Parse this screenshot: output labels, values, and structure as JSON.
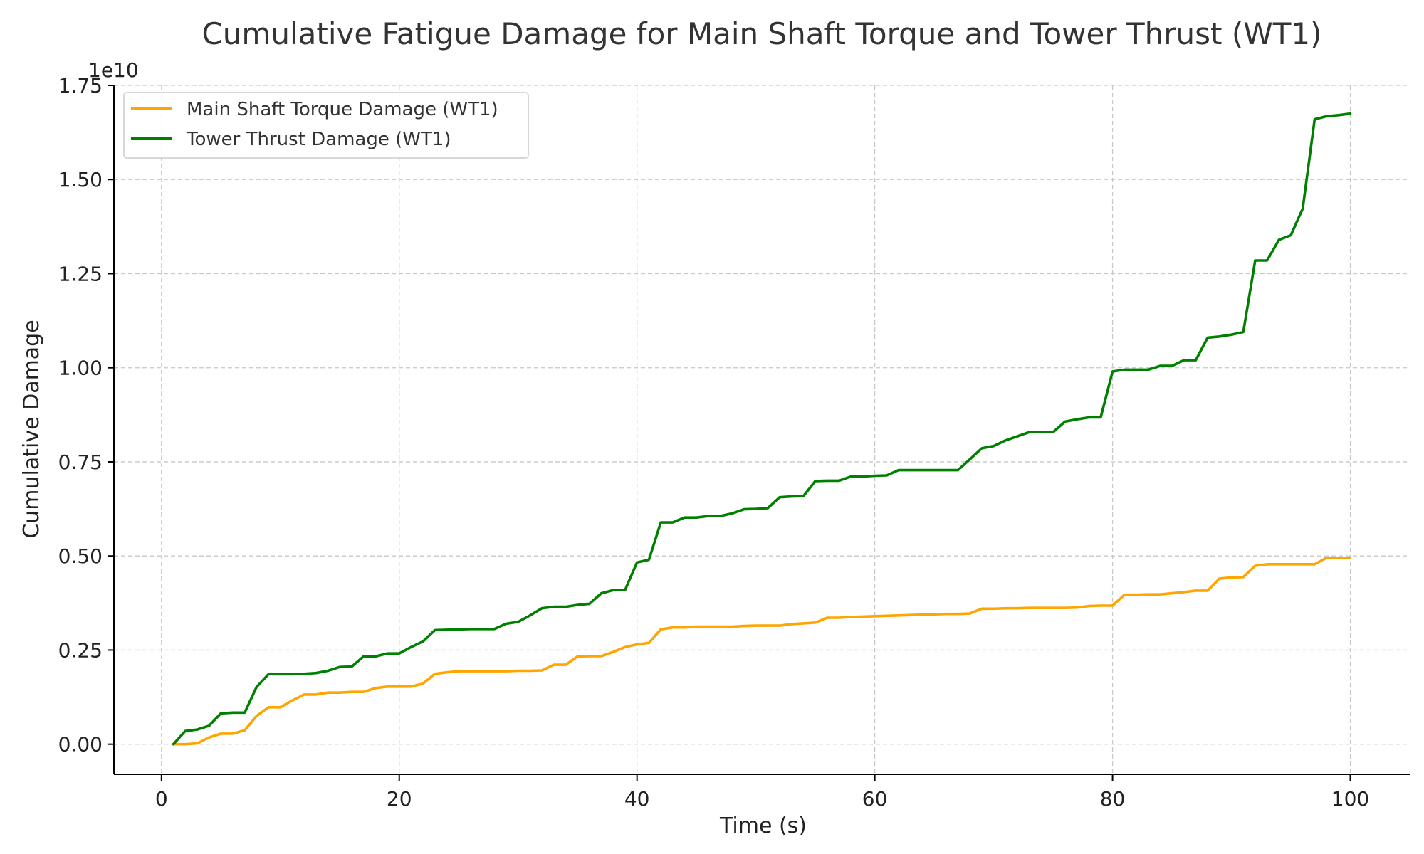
{
  "chart_data": {
    "type": "line",
    "title": "Cumulative Fatigue Damage for Main Shaft Torque and Tower Thrust (WT1)",
    "xlabel": "Time (s)",
    "ylabel": "Cumulative Damage",
    "y_offset_label": "1e10",
    "xlim": [
      -4,
      105
    ],
    "ylim": [
      -0.08,
      1.75
    ],
    "x_ticks": [
      0,
      20,
      40,
      60,
      80,
      100
    ],
    "x_tick_labels": [
      "0",
      "20",
      "40",
      "60",
      "80",
      "100"
    ],
    "y_ticks": [
      0,
      0.25,
      0.5,
      0.75,
      1.0,
      1.25,
      1.5,
      1.75
    ],
    "y_tick_labels": [
      "0.00",
      "0.25",
      "0.50",
      "0.75",
      "1.00",
      "1.25",
      "1.50",
      "1.75"
    ],
    "grid": true,
    "legend_position": "top-left",
    "x": [
      1,
      2,
      3,
      4,
      5,
      6,
      7,
      8,
      9,
      10,
      11,
      12,
      13,
      14,
      15,
      16,
      17,
      18,
      19,
      20,
      21,
      22,
      23,
      24,
      25,
      26,
      27,
      28,
      29,
      30,
      31,
      32,
      33,
      34,
      35,
      36,
      37,
      38,
      39,
      40,
      41,
      42,
      43,
      44,
      45,
      46,
      47,
      48,
      49,
      50,
      51,
      52,
      53,
      54,
      55,
      56,
      57,
      58,
      59,
      60,
      61,
      62,
      63,
      64,
      65,
      66,
      67,
      68,
      69,
      70,
      71,
      72,
      73,
      74,
      75,
      76,
      77,
      78,
      79,
      80,
      81,
      82,
      83,
      84,
      85,
      86,
      87,
      88,
      89,
      90,
      91,
      92,
      93,
      94,
      95,
      96,
      97,
      98,
      99,
      100
    ],
    "series": [
      {
        "name": "Main Shaft Torque Damage (WT1)",
        "color": "#ffa500",
        "values": [
          0.0,
          0.0,
          0.002,
          0.018,
          0.028,
          0.028,
          0.037,
          0.075,
          0.098,
          0.098,
          0.116,
          0.132,
          0.132,
          0.137,
          0.137,
          0.139,
          0.139,
          0.149,
          0.153,
          0.153,
          0.153,
          0.161,
          0.187,
          0.191,
          0.194,
          0.194,
          0.194,
          0.194,
          0.194,
          0.195,
          0.195,
          0.196,
          0.211,
          0.211,
          0.233,
          0.234,
          0.234,
          0.245,
          0.258,
          0.265,
          0.269,
          0.305,
          0.31,
          0.31,
          0.312,
          0.312,
          0.312,
          0.312,
          0.314,
          0.315,
          0.315,
          0.315,
          0.319,
          0.321,
          0.323,
          0.336,
          0.336,
          0.338,
          0.339,
          0.34,
          0.341,
          0.342,
          0.343,
          0.344,
          0.345,
          0.346,
          0.346,
          0.347,
          0.36,
          0.36,
          0.361,
          0.361,
          0.362,
          0.362,
          0.362,
          0.362,
          0.363,
          0.367,
          0.368,
          0.368,
          0.397,
          0.397,
          0.398,
          0.398,
          0.401,
          0.404,
          0.408,
          0.408,
          0.44,
          0.443,
          0.444,
          0.474,
          0.478,
          0.478,
          0.478,
          0.478,
          0.478,
          0.495,
          0.495,
          0.495
        ]
      },
      {
        "name": "Tower Thrust Damage (WT1)",
        "color": "#008000",
        "values": [
          0.0,
          0.035,
          0.039,
          0.049,
          0.082,
          0.084,
          0.084,
          0.152,
          0.186,
          0.186,
          0.186,
          0.187,
          0.189,
          0.195,
          0.205,
          0.206,
          0.233,
          0.233,
          0.241,
          0.241,
          0.258,
          0.273,
          0.303,
          0.304,
          0.305,
          0.306,
          0.306,
          0.306,
          0.32,
          0.325,
          0.342,
          0.361,
          0.365,
          0.365,
          0.37,
          0.373,
          0.401,
          0.409,
          0.41,
          0.483,
          0.49,
          0.589,
          0.589,
          0.602,
          0.602,
          0.606,
          0.606,
          0.613,
          0.624,
          0.625,
          0.627,
          0.656,
          0.658,
          0.659,
          0.699,
          0.7,
          0.7,
          0.711,
          0.711,
          0.713,
          0.714,
          0.728,
          0.728,
          0.728,
          0.728,
          0.728,
          0.728,
          0.757,
          0.786,
          0.792,
          0.807,
          0.818,
          0.829,
          0.829,
          0.829,
          0.857,
          0.863,
          0.868,
          0.868,
          0.99,
          0.995,
          0.995,
          0.995,
          1.005,
          1.005,
          1.02,
          1.02,
          1.08,
          1.083,
          1.088,
          1.095,
          1.285,
          1.285,
          1.34,
          1.352,
          1.423,
          1.66,
          1.668,
          1.671,
          1.675
        ]
      }
    ]
  }
}
